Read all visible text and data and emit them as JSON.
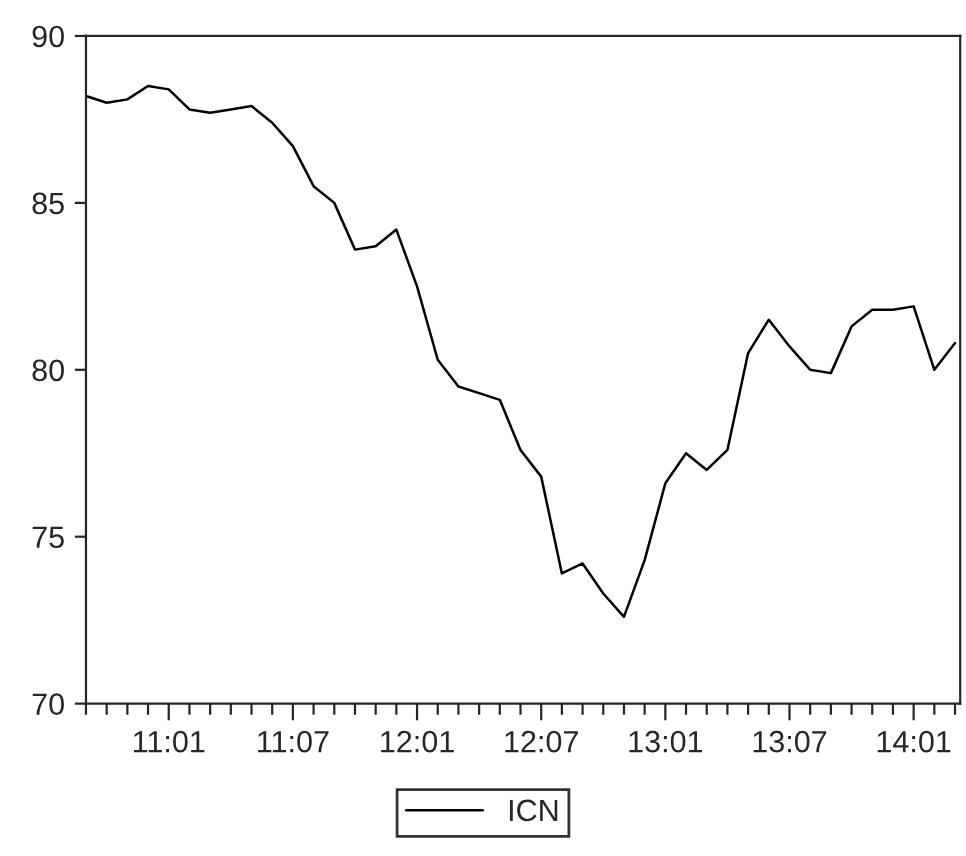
{
  "chart_data": {
    "type": "line",
    "categories": [
      null,
      null,
      null,
      null,
      "11:01",
      null,
      null,
      null,
      null,
      null,
      "11:07",
      null,
      null,
      null,
      null,
      null,
      "12:01",
      null,
      null,
      null,
      null,
      null,
      "12:07",
      null,
      null,
      null,
      null,
      null,
      "13:01",
      null,
      null,
      null,
      null,
      null,
      "13:07",
      null,
      null,
      null,
      null,
      null,
      "14:01",
      null,
      null
    ],
    "series": [
      {
        "name": "ICN",
        "color": "#000000",
        "values": [
          88.2,
          88.0,
          88.1,
          88.5,
          88.4,
          87.8,
          87.7,
          87.8,
          87.9,
          87.4,
          86.7,
          85.5,
          85.0,
          83.6,
          83.7,
          84.2,
          82.5,
          80.3,
          79.5,
          79.3,
          79.1,
          77.6,
          76.8,
          73.9,
          74.2,
          73.3,
          72.6,
          74.3,
          76.6,
          77.5,
          77.0,
          77.6,
          80.5,
          81.5,
          80.7,
          80.0,
          79.9,
          81.3,
          81.8,
          81.8,
          81.9,
          80.0,
          80.8
        ]
      }
    ],
    "ylim": [
      70,
      90
    ],
    "yticks": [
      70,
      75,
      80,
      85,
      90
    ],
    "grid": false,
    "legend": "bottom",
    "marker": "none",
    "line_style": "solid"
  }
}
